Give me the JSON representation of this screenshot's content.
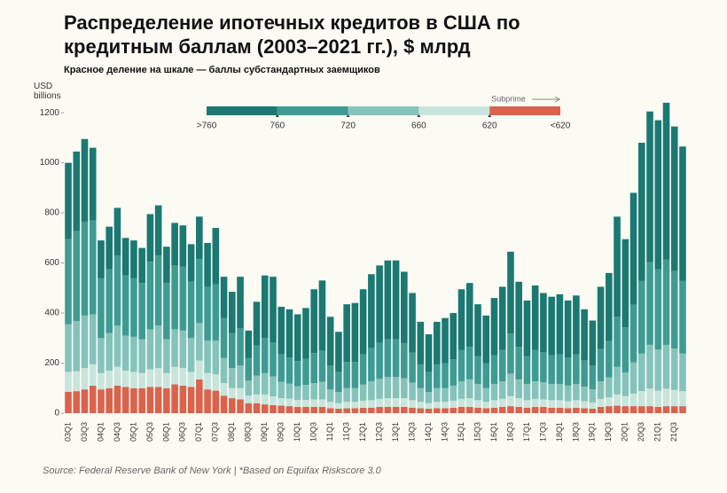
{
  "chart_data": {
    "type": "stacked_bar",
    "title": "Распределение ипотечных кредитов в США по кредитным баллам (2003–2021 гг.), $ млрд",
    "subtitle": "Красное деление на шкале — баллы субстандартных заемщиков",
    "y_label": "USD billions",
    "source": "Source: Federal Reserve Bank of New York | *Based on Equifax Riskscore 3.0",
    "legend_ticks": [
      ">760",
      "760",
      "720",
      "660",
      "620",
      "<620"
    ],
    "legend_annotation": "Subprime",
    "grid": false,
    "ylim": [
      0,
      1250
    ],
    "yticks": [
      0,
      200,
      400,
      600,
      800,
      1000,
      1200
    ],
    "categories": [
      "03Q1",
      null,
      "03Q3",
      null,
      "04Q1",
      null,
      "04Q3",
      null,
      "05Q1",
      null,
      "05Q3",
      null,
      "06Q1",
      null,
      "06Q3",
      null,
      "07Q1",
      null,
      "07Q3",
      null,
      "08Q1",
      null,
      "08Q3",
      null,
      "09Q1",
      null,
      "09Q3",
      null,
      "10Q1",
      null,
      "10Q3",
      null,
      "11Q1",
      null,
      "11Q3",
      null,
      "12Q1",
      null,
      "12Q3",
      null,
      "13Q1",
      null,
      "13Q3",
      null,
      "14Q1",
      null,
      "14Q3",
      null,
      "15Q1",
      null,
      "15Q3",
      null,
      "16Q1",
      null,
      "16Q3",
      null,
      "17Q1",
      null,
      "17Q3",
      null,
      "18Q1",
      null,
      "18Q3",
      null,
      "19Q1",
      null,
      "19Q3",
      null,
      "20Q1",
      null,
      "20Q3",
      null,
      "21Q1",
      null,
      "21Q3",
      null
    ],
    "series": [
      {
        "color": "#1b7872",
        "values": [
          305,
          317,
          330,
          290,
          150,
          170,
          190,
          150,
          150,
          140,
          190,
          200,
          145,
          170,
          165,
          150,
          170,
          175,
          225,
          165,
          165,
          205,
          110,
          175,
          250,
          263,
          190,
          192,
          187,
          202,
          255,
          280,
          195,
          160,
          230,
          235,
          260,
          293,
          308,
          315,
          315,
          285,
          238,
          170,
          150,
          170,
          180,
          185,
          243,
          255,
          208,
          190,
          228,
          253,
          327,
          260,
          223,
          258,
          237,
          233,
          240,
          228,
          235,
          204,
          180,
          248,
          272,
          400,
          352,
          447,
          552,
          602,
          595,
          627,
          577,
          537
        ]
      },
      {
        "color": "#3d9b94",
        "values": [
          340,
          360,
          375,
          375,
          240,
          255,
          280,
          240,
          235,
          225,
          270,
          280,
          225,
          255,
          255,
          225,
          255,
          215,
          225,
          160,
          140,
          150,
          90,
          120,
          140,
          135,
          110,
          105,
          100,
          105,
          120,
          125,
          95,
          80,
          105,
          105,
          120,
          135,
          145,
          150,
          150,
          140,
          120,
          95,
          80,
          95,
          100,
          105,
          125,
          130,
          110,
          100,
          115,
          125,
          160,
          130,
          110,
          125,
          120,
          115,
          118,
          112,
          118,
          105,
          95,
          130,
          145,
          200,
          180,
          230,
          290,
          330,
          320,
          340,
          310,
          290
        ]
      },
      {
        "color": "#84c3bb",
        "values": [
          190,
          200,
          210,
          200,
          140,
          150,
          165,
          140,
          140,
          135,
          160,
          170,
          135,
          150,
          150,
          135,
          150,
          130,
          135,
          100,
          80,
          90,
          60,
          75,
          85,
          80,
          65,
          60,
          55,
          60,
          65,
          70,
          50,
          45,
          55,
          55,
          65,
          75,
          80,
          85,
          85,
          80,
          70,
          55,
          45,
          55,
          55,
          60,
          70,
          75,
          65,
          55,
          65,
          70,
          90,
          75,
          65,
          70,
          68,
          65,
          65,
          62,
          65,
          58,
          52,
          70,
          80,
          110,
          95,
          125,
          150,
          175,
          165,
          175,
          165,
          150
        ]
      },
      {
        "color": "#c8e5dd",
        "values": [
          80,
          80,
          85,
          85,
          65,
          70,
          75,
          65,
          65,
          60,
          70,
          75,
          60,
          70,
          70,
          60,
          75,
          65,
          65,
          50,
          40,
          45,
          30,
          35,
          40,
          35,
          30,
          30,
          28,
          28,
          30,
          30,
          25,
          22,
          25,
          25,
          28,
          30,
          32,
          35,
          35,
          35,
          30,
          25,
          22,
          25,
          25,
          28,
          32,
          35,
          30,
          25,
          30,
          32,
          40,
          35,
          30,
          32,
          30,
          30,
          30,
          28,
          30,
          28,
          25,
          32,
          35,
          45,
          40,
          50,
          60,
          70,
          65,
          70,
          65,
          60
        ]
      },
      {
        "color": "#d9634c",
        "values": [
          85,
          88,
          95,
          110,
          95,
          100,
          110,
          105,
          100,
          100,
          105,
          105,
          100,
          115,
          110,
          105,
          135,
          95,
          90,
          70,
          60,
          55,
          40,
          40,
          35,
          32,
          30,
          28,
          25,
          25,
          25,
          25,
          20,
          18,
          20,
          20,
          22,
          22,
          25,
          25,
          25,
          25,
          22,
          20,
          18,
          20,
          20,
          22,
          25,
          25,
          22,
          20,
          22,
          25,
          28,
          25,
          22,
          25,
          25,
          22,
          22,
          20,
          22,
          20,
          18,
          25,
          28,
          30,
          28,
          28,
          28,
          28,
          25,
          28,
          28,
          28
        ]
      }
    ]
  }
}
